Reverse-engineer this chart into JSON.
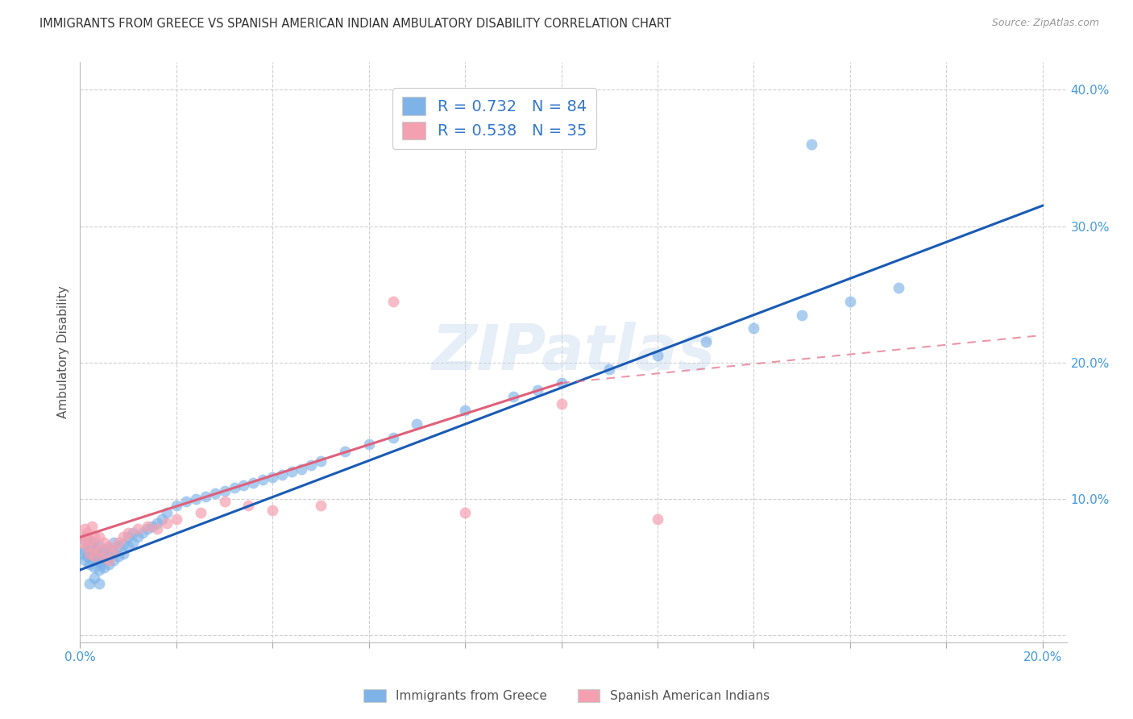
{
  "title": "IMMIGRANTS FROM GREECE VS SPANISH AMERICAN INDIAN AMBULATORY DISABILITY CORRELATION CHART",
  "source": "Source: ZipAtlas.com",
  "ylabel": "Ambulatory Disability",
  "xlim": [
    0.0,
    0.205
  ],
  "ylim": [
    -0.005,
    0.42
  ],
  "xtick_positions": [
    0.0,
    0.02,
    0.04,
    0.06,
    0.08,
    0.1,
    0.12,
    0.14,
    0.16,
    0.18,
    0.2
  ],
  "xtick_labels": [
    "0.0%",
    "",
    "",
    "",
    "",
    "",
    "",
    "",
    "",
    "",
    "20.0%"
  ],
  "ytick_positions": [
    0.0,
    0.1,
    0.2,
    0.3,
    0.4
  ],
  "ytick_labels_right": [
    "",
    "10.0%",
    "20.0%",
    "30.0%",
    "40.0%"
  ],
  "blue_color": "#7eb3e8",
  "pink_color": "#f4a0b0",
  "blue_line_color": "#1a5bb5",
  "pink_line_color": "#e0607a",
  "legend1_label": "R = 0.732   N = 84",
  "legend2_label": "R = 0.538   N = 35",
  "legend_label_blue": "Immigrants from Greece",
  "legend_label_pink": "Spanish American Indians",
  "watermark": "ZIPatlas",
  "background_color": "#ffffff",
  "blue_line": [
    0.0,
    0.048,
    0.2,
    0.315
  ],
  "pink_line_solid": [
    0.0,
    0.072,
    0.1,
    0.185
  ],
  "pink_line_dash": [
    0.1,
    0.185,
    0.2,
    0.22
  ],
  "blue_scatter_x": [
    0.0005,
    0.001,
    0.001,
    0.001,
    0.0015,
    0.0015,
    0.0015,
    0.002,
    0.002,
    0.002,
    0.002,
    0.0025,
    0.0025,
    0.0025,
    0.003,
    0.003,
    0.003,
    0.003,
    0.0035,
    0.0035,
    0.004,
    0.004,
    0.004,
    0.004,
    0.0045,
    0.005,
    0.005,
    0.005,
    0.006,
    0.006,
    0.006,
    0.007,
    0.007,
    0.007,
    0.008,
    0.008,
    0.009,
    0.009,
    0.01,
    0.01,
    0.011,
    0.011,
    0.012,
    0.013,
    0.014,
    0.015,
    0.016,
    0.017,
    0.018,
    0.02,
    0.022,
    0.024,
    0.026,
    0.028,
    0.03,
    0.032,
    0.034,
    0.036,
    0.038,
    0.04,
    0.042,
    0.044,
    0.046,
    0.048,
    0.05,
    0.055,
    0.06,
    0.065,
    0.07,
    0.08,
    0.09,
    0.095,
    0.1,
    0.11,
    0.12,
    0.13,
    0.14,
    0.15,
    0.16,
    0.17,
    0.002,
    0.003,
    0.004,
    0.152
  ],
  "blue_scatter_y": [
    0.06,
    0.055,
    0.062,
    0.07,
    0.058,
    0.065,
    0.072,
    0.052,
    0.058,
    0.065,
    0.07,
    0.055,
    0.062,
    0.068,
    0.05,
    0.056,
    0.062,
    0.068,
    0.055,
    0.06,
    0.048,
    0.054,
    0.06,
    0.066,
    0.052,
    0.05,
    0.057,
    0.063,
    0.052,
    0.058,
    0.064,
    0.055,
    0.062,
    0.068,
    0.058,
    0.065,
    0.06,
    0.067,
    0.065,
    0.072,
    0.068,
    0.075,
    0.072,
    0.075,
    0.078,
    0.08,
    0.082,
    0.085,
    0.09,
    0.095,
    0.098,
    0.1,
    0.102,
    0.104,
    0.106,
    0.108,
    0.11,
    0.112,
    0.114,
    0.116,
    0.118,
    0.12,
    0.122,
    0.125,
    0.128,
    0.135,
    0.14,
    0.145,
    0.155,
    0.165,
    0.175,
    0.18,
    0.185,
    0.195,
    0.205,
    0.215,
    0.225,
    0.235,
    0.245,
    0.255,
    0.038,
    0.042,
    0.038,
    0.36
  ],
  "pink_scatter_x": [
    0.0005,
    0.001,
    0.001,
    0.0015,
    0.0015,
    0.002,
    0.002,
    0.0025,
    0.003,
    0.003,
    0.003,
    0.004,
    0.004,
    0.005,
    0.005,
    0.006,
    0.006,
    0.007,
    0.008,
    0.009,
    0.01,
    0.012,
    0.014,
    0.016,
    0.018,
    0.02,
    0.025,
    0.03,
    0.035,
    0.04,
    0.05,
    0.065,
    0.08,
    0.1,
    0.12
  ],
  "pink_scatter_y": [
    0.068,
    0.072,
    0.078,
    0.065,
    0.075,
    0.06,
    0.07,
    0.08,
    0.058,
    0.065,
    0.072,
    0.062,
    0.072,
    0.058,
    0.068,
    0.055,
    0.065,
    0.062,
    0.068,
    0.072,
    0.075,
    0.078,
    0.08,
    0.078,
    0.082,
    0.085,
    0.09,
    0.098,
    0.095,
    0.092,
    0.095,
    0.245,
    0.09,
    0.17,
    0.085
  ]
}
